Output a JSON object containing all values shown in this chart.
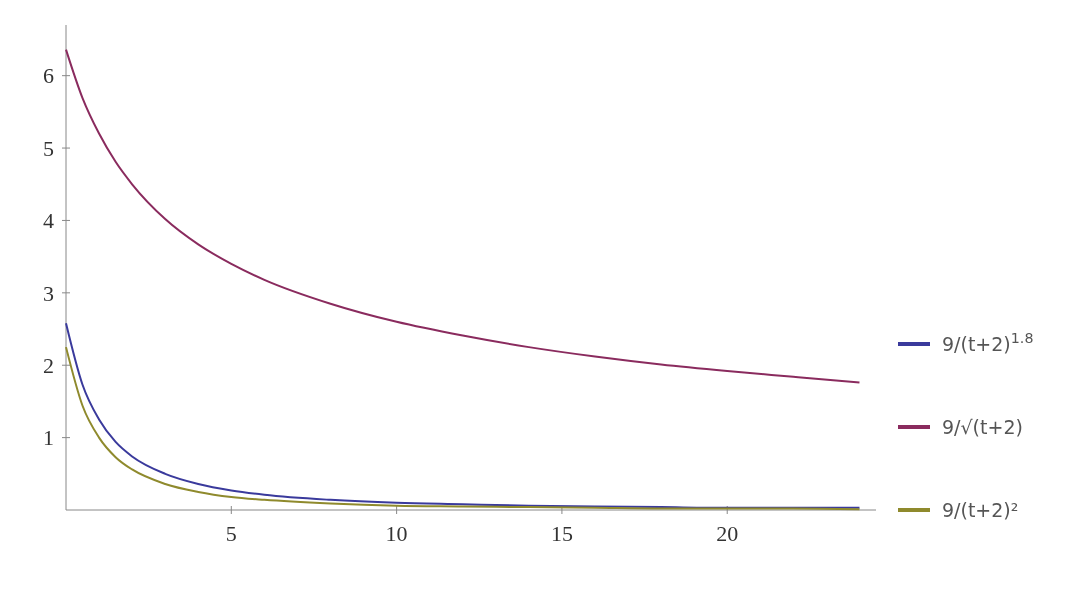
{
  "chart_data": {
    "type": "line",
    "x": [
      0,
      0.5,
      1,
      1.5,
      2,
      3,
      4,
      5,
      6,
      8,
      10,
      12,
      14,
      16,
      18,
      20,
      22,
      24
    ],
    "xlim": [
      0,
      24.5
    ],
    "ylim": [
      0,
      6.7
    ],
    "xticks": [
      5,
      10,
      15,
      20
    ],
    "yticks": [
      1,
      2,
      3,
      4,
      5,
      6
    ],
    "legend": "right",
    "grid": false,
    "series": [
      {
        "name": "9/(t+2)$^{1.8}$",
        "color": "#3a3a9c",
        "values": [
          2.58,
          1.73,
          1.25,
          0.94,
          0.74,
          0.5,
          0.36,
          0.27,
          0.21,
          0.14,
          0.1,
          0.08,
          0.06,
          0.05,
          0.04,
          0.03,
          0.03,
          0.03
        ]
      },
      {
        "name": "9/√(t+2)",
        "color": "#8a2b5e",
        "values": [
          6.36,
          5.69,
          5.2,
          4.81,
          4.5,
          4.02,
          3.67,
          3.4,
          3.18,
          2.85,
          2.6,
          2.41,
          2.25,
          2.12,
          2.01,
          1.92,
          1.84,
          1.76
        ]
      },
      {
        "name": "9/(t+2)²",
        "color": "#8f8a2d",
        "values": [
          2.25,
          1.44,
          1,
          0.73,
          0.56,
          0.36,
          0.25,
          0.18,
          0.14,
          0.09,
          0.06,
          0.05,
          0.04,
          0.03,
          0.02,
          0.02,
          0.02,
          0.01
        ]
      }
    ]
  }
}
